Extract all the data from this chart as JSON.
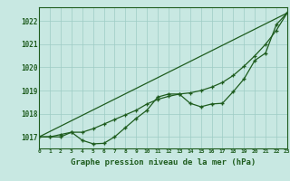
{
  "title": "Graphe pression niveau de la mer (hPa)",
  "background_color": "#c8e8e2",
  "grid_color": "#9eccc5",
  "line_color": "#1e5c1e",
  "xlim": [
    0,
    23
  ],
  "ylim": [
    1016.5,
    1022.6
  ],
  "yticks": [
    1017,
    1018,
    1019,
    1020,
    1021,
    1022
  ],
  "xticks": [
    0,
    1,
    2,
    3,
    4,
    5,
    6,
    7,
    8,
    9,
    10,
    11,
    12,
    13,
    14,
    15,
    16,
    17,
    18,
    19,
    20,
    21,
    22,
    23
  ],
  "series1_x": [
    0,
    1,
    2,
    3,
    4,
    5,
    6,
    7,
    8,
    9,
    10,
    11,
    12,
    13,
    14,
    15,
    16,
    17,
    18,
    19,
    20,
    21,
    22,
    23
  ],
  "series1_y": [
    1017.0,
    1017.0,
    1017.0,
    1017.2,
    1016.85,
    1016.7,
    1016.72,
    1017.0,
    1017.4,
    1017.8,
    1018.15,
    1018.72,
    1018.85,
    1018.85,
    1018.45,
    1018.3,
    1018.42,
    1018.45,
    1018.95,
    1019.5,
    1020.3,
    1020.62,
    1021.85,
    1022.35
  ],
  "series2_x": [
    0,
    1,
    2,
    3,
    4,
    5,
    6,
    7,
    8,
    9,
    10,
    11,
    12,
    13,
    14,
    15,
    16,
    17,
    18,
    19,
    20,
    21,
    22,
    23
  ],
  "series2_y": [
    1017.0,
    1017.0,
    1017.1,
    1017.2,
    1017.2,
    1017.35,
    1017.55,
    1017.75,
    1017.95,
    1018.15,
    1018.42,
    1018.62,
    1018.75,
    1018.85,
    1018.9,
    1019.0,
    1019.15,
    1019.35,
    1019.65,
    1020.05,
    1020.5,
    1021.0,
    1021.6,
    1022.35
  ],
  "series3_x": [
    0,
    23
  ],
  "series3_y": [
    1017.0,
    1022.35
  ]
}
